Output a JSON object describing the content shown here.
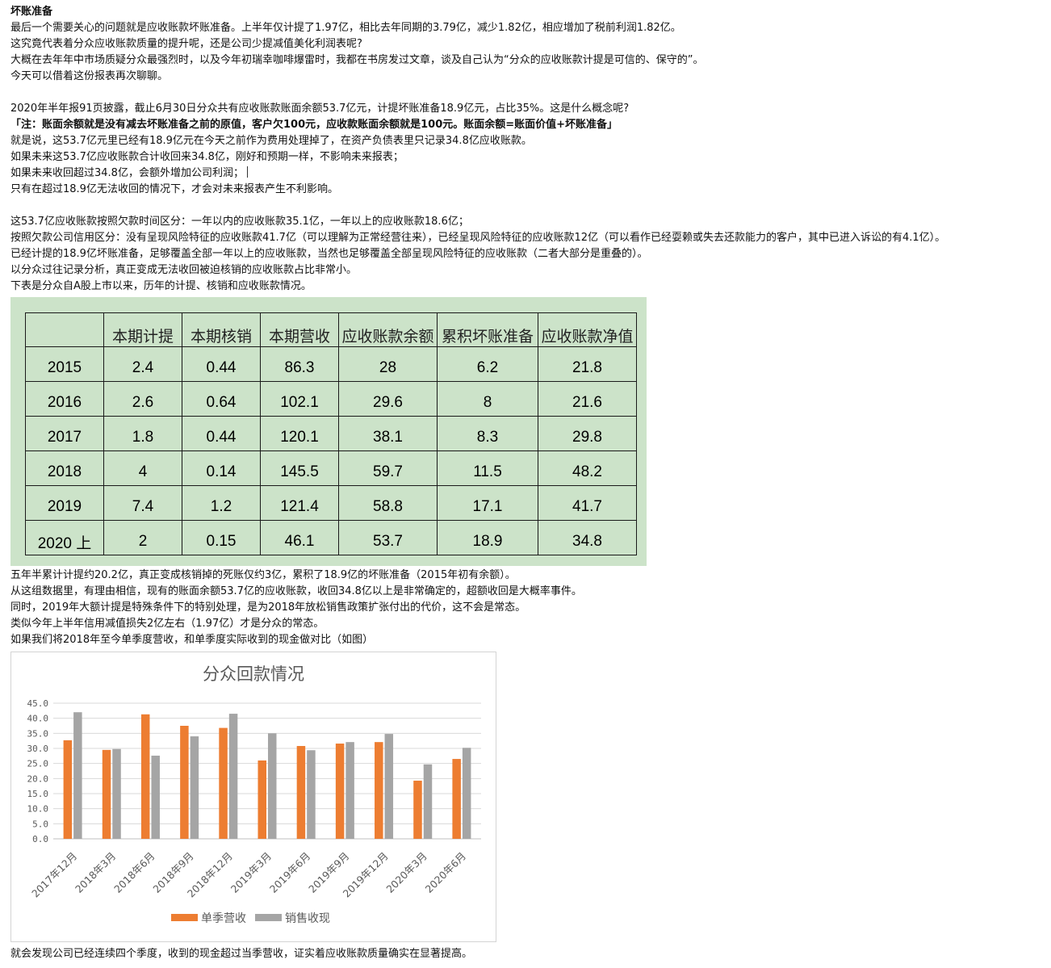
{
  "article": {
    "title": "坏账准备",
    "intro": [
      "最后一个需要关心的问题就是应收账款坏账准备。上半年仅计提了1.97亿，相比去年同期的3.79亿，减少1.82亿，相应增加了税前利润1.82亿。",
      "这究竟代表着分众应收账款质量的提升呢，还是公司少提减值美化利润表呢?",
      "大概在去年年中市场质疑分众最强烈时，以及今年初瑞幸咖啡爆雷时，我都在书房发过文章，谈及自己认为“分众的应收账款计提是可信的、保守的”。",
      "今天可以借着这份报表再次聊聊。"
    ],
    "para2": "2020年半年报91页披露，截止6月30日分众共有应收账款账面余额53.7亿元，计提坏账准备18.9亿元，占比35%。这是什么概念呢?",
    "note": "「注：账面余额就是没有减去坏账准备之前的原值，客户欠100元，应收款账面余额就是100元。账面余额=账面价值+坏账准备」",
    "para3": [
      "就是说，这53.7亿元里已经有18.9亿元在今天之前作为费用处理掉了，在资产负债表里只记录34.8亿应收账款。",
      "如果未来这53.7亿应收账款合计收回来34.8亿，刚好和预期一样，不影响未来报表；",
      "如果未来收回超过34.8亿，会额外增加公司利润；",
      "只有在超过18.9亿无法收回的情况下，才会对未来报表产生不利影响。"
    ],
    "para4": [
      "这53.7亿应收账款按照欠款时间区分：一年以内的应收账款35.1亿，一年以上的应收账款18.6亿；",
      "按照欠款公司信用区分：没有呈现风险特征的应收账款41.7亿（可以理解为正常经营往来），已经呈现风险特征的应收账款12亿（可以看作已经耍赖或失去还款能力的客户，其中已进入诉讼的有4.1亿）。",
      "已经计提的18.9亿坏账准备，足够覆盖全部一年以上的应收账款，当然也足够覆盖全部呈现风险特征的应收账款（二者大部分是重叠的）。",
      "以分众过往记录分析，真正变成无法收回被迫核销的应收账款占比非常小。",
      "下表是分众自A股上市以来，历年的计提、核销和应收账款情况。"
    ],
    "para5": [
      "五年半累计计提约20.2亿，真正变成核销掉的死账仅约3亿，累积了18.9亿的坏账准备（2015年初有余额）。",
      "从这组数据里，有理由相信，现有的账面余额53.7亿的应收账款，收回34.8亿以上是非常确定的，超额收回是大概率事件。",
      "同时，2019年大额计提是特殊条件下的特别处理，是为2018年放松销售政策扩张付出的代价，这不会是常态。",
      "类似今年上半年信用减值损失2亿左右（1.97亿）才是分众的常态。",
      "如果我们将2018年至今单季度营收，和单季度实际收到的现金做对比（如图）"
    ],
    "conclusion": "就会发现公司已经连续四个季度，收到的现金超过当季营收，证实着应收账款质量确实在显著提高。"
  },
  "table": {
    "headers": [
      "",
      "本期计提",
      "本期核销",
      "本期营收",
      "应收账款余额",
      "累积坏账准备",
      "应收账款净值"
    ],
    "rows": [
      [
        "2015",
        "2.4",
        "0.44",
        "86.3",
        "28",
        "6.2",
        "21.8"
      ],
      [
        "2016",
        "2.6",
        "0.64",
        "102.1",
        "29.6",
        "8",
        "21.6"
      ],
      [
        "2017",
        "1.8",
        "0.44",
        "120.1",
        "38.1",
        "8.3",
        "29.8"
      ],
      [
        "2018",
        "4",
        "0.14",
        "145.5",
        "59.7",
        "11.5",
        "48.2"
      ],
      [
        "2019",
        "7.4",
        "1.2",
        "121.4",
        "58.8",
        "17.1",
        "41.7"
      ],
      [
        "2020 上",
        "2",
        "0.15",
        "46.1",
        "53.7",
        "18.9",
        "34.8"
      ]
    ]
  },
  "chart_data": {
    "type": "bar",
    "title": "分众回款情况",
    "categories": [
      "2017年12月",
      "2018年3月",
      "2018年6月",
      "2018年9月",
      "2018年12月",
      "2019年3月",
      "2019年6月",
      "2019年9月",
      "2019年12月",
      "2020年3月",
      "2020年6月"
    ],
    "series": [
      {
        "name": "单季营收",
        "color": "#ed7d31",
        "values": [
          32.7,
          29.5,
          41.3,
          37.5,
          36.8,
          26.0,
          30.8,
          31.6,
          32.1,
          19.3,
          26.5
        ]
      },
      {
        "name": "销售收现",
        "color": "#a5a5a5",
        "values": [
          42.0,
          29.8,
          27.6,
          34.0,
          41.5,
          35.0,
          29.4,
          32.1,
          34.8,
          24.7,
          30.2
        ]
      }
    ],
    "yticks": [
      "0.0",
      "5.0",
      "10.0",
      "15.0",
      "20.0",
      "25.0",
      "30.0",
      "35.0",
      "40.0",
      "45.0"
    ],
    "ylim": [
      0,
      45
    ],
    "grid": true,
    "legend": "bottom",
    "xlabel": "",
    "ylabel": ""
  }
}
